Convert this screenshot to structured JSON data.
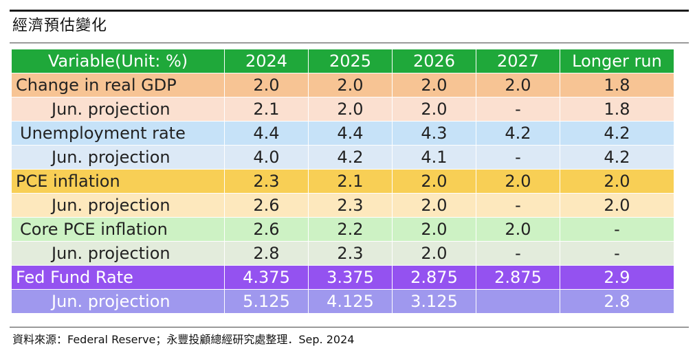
{
  "title": "經濟預估變化",
  "table": {
    "header": [
      "Variable(Unit: %)",
      "2024",
      "2025",
      "2026",
      "2027",
      "Longer run"
    ],
    "rows": [
      {
        "label": "Change in real GDP",
        "values": [
          "2.0",
          "2.0",
          "2.0",
          "2.0",
          "1.8"
        ]
      },
      {
        "label": "Jun. projection",
        "values": [
          "2.1",
          "2.0",
          "2.0",
          "-",
          "1.8"
        ]
      },
      {
        "label": "Unemployment rate",
        "values": [
          "4.4",
          "4.4",
          "4.3",
          "4.2",
          "4.2"
        ]
      },
      {
        "label": "Jun. projection",
        "values": [
          "4.0",
          "4.2",
          "4.1",
          "-",
          "4.2"
        ]
      },
      {
        "label": "PCE inflation",
        "values": [
          "2.3",
          "2.1",
          "2.0",
          "2.0",
          "2.0"
        ]
      },
      {
        "label": "Jun. projection",
        "values": [
          "2.6",
          "2.3",
          "2.0",
          "-",
          "2.0"
        ]
      },
      {
        "label": "Core PCE inflation",
        "values": [
          "2.6",
          "2.2",
          "2.0",
          "2.0",
          "-"
        ]
      },
      {
        "label": "Jun. projection",
        "values": [
          "2.8",
          "2.3",
          "2.0",
          "-",
          "-"
        ]
      },
      {
        "label": "Fed Fund Rate",
        "values": [
          "4.375",
          "3.375",
          "2.875",
          "2.875",
          "2.9"
        ]
      },
      {
        "label": "Jun. projection",
        "values": [
          "5.125",
          "4.125",
          "3.125",
          "",
          "2.8"
        ]
      }
    ]
  },
  "colors": {
    "header": "#1fa83a",
    "gdp": "#f7c494",
    "gdp_jun": "#fbe0d0",
    "unemployment": "#c6e2f8",
    "unemployment_jun": "#dce9f6",
    "pce": "#f8cf55",
    "pce_jun": "#fde8bd",
    "core_pce": "#cdf2c4",
    "core_pce_jun": "#e3ecdc",
    "fed": "#9452f0",
    "fed_jun": "#9f98ee"
  },
  "source": "資料來源：Federal Reserve；永豐投顧總經研究處整理．Sep. 2024"
}
